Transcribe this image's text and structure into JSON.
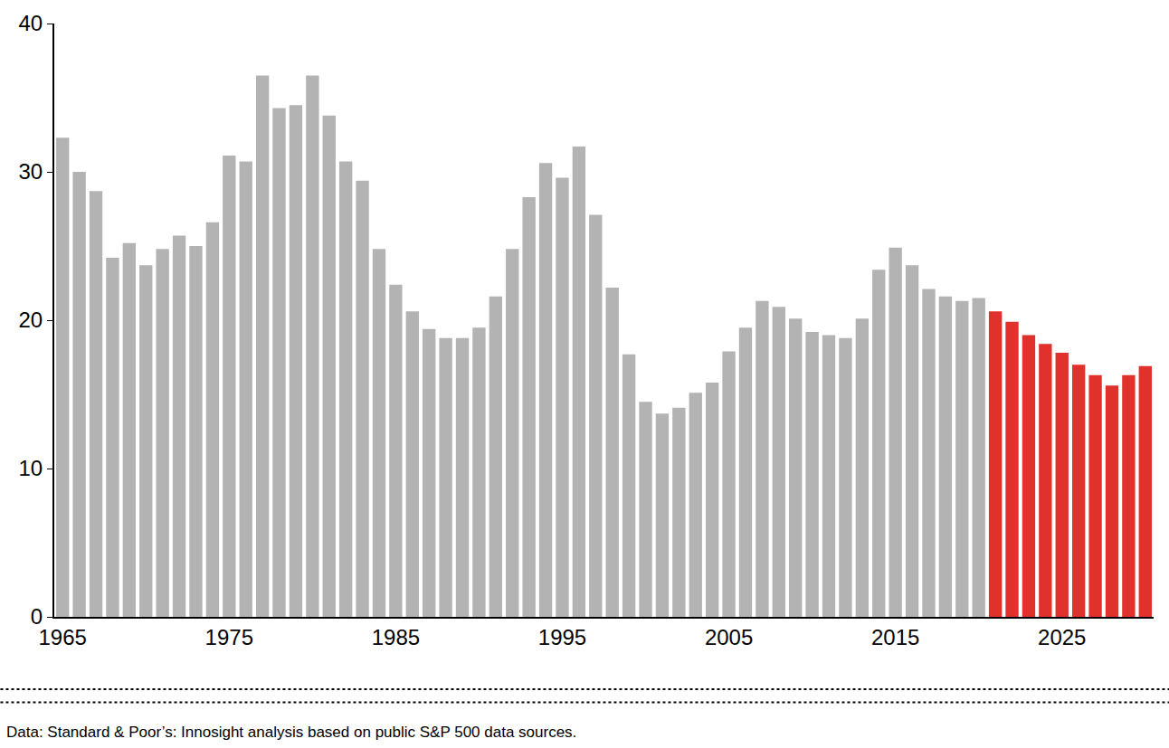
{
  "chart_data": {
    "type": "bar",
    "x": [
      1965,
      1966,
      1967,
      1968,
      1969,
      1970,
      1971,
      1972,
      1973,
      1974,
      1975,
      1976,
      1977,
      1978,
      1979,
      1980,
      1981,
      1982,
      1983,
      1984,
      1985,
      1986,
      1987,
      1988,
      1989,
      1990,
      1991,
      1992,
      1993,
      1994,
      1995,
      1996,
      1997,
      1998,
      1999,
      2000,
      2001,
      2002,
      2003,
      2004,
      2005,
      2006,
      2007,
      2008,
      2009,
      2010,
      2011,
      2012,
      2013,
      2014,
      2015,
      2016,
      2017,
      2018,
      2019,
      2020,
      2021,
      2022,
      2023,
      2024,
      2025,
      2026,
      2027,
      2028,
      2029,
      2030
    ],
    "values": [
      32.3,
      30.0,
      28.7,
      24.2,
      25.2,
      23.7,
      24.8,
      25.7,
      25.0,
      26.6,
      31.1,
      30.7,
      36.5,
      34.3,
      34.5,
      36.5,
      33.8,
      30.7,
      29.4,
      24.8,
      22.4,
      20.6,
      19.4,
      18.8,
      18.8,
      19.5,
      21.6,
      24.8,
      28.3,
      30.6,
      29.6,
      31.7,
      27.1,
      22.2,
      17.7,
      14.5,
      13.7,
      14.1,
      15.1,
      15.8,
      17.9,
      19.5,
      21.3,
      20.9,
      20.1,
      19.2,
      19.0,
      18.8,
      20.1,
      23.4,
      24.9,
      23.7,
      22.1,
      21.6,
      21.3,
      21.5,
      20.6,
      19.9,
      19.0,
      18.4,
      17.8,
      17.0,
      16.3,
      15.6,
      16.3,
      16.9
    ],
    "colors": [
      "#b3b3b3",
      "#b3b3b3",
      "#b3b3b3",
      "#b3b3b3",
      "#b3b3b3",
      "#b3b3b3",
      "#b3b3b3",
      "#b3b3b3",
      "#b3b3b3",
      "#b3b3b3",
      "#b3b3b3",
      "#b3b3b3",
      "#b3b3b3",
      "#b3b3b3",
      "#b3b3b3",
      "#b3b3b3",
      "#b3b3b3",
      "#b3b3b3",
      "#b3b3b3",
      "#b3b3b3",
      "#b3b3b3",
      "#b3b3b3",
      "#b3b3b3",
      "#b3b3b3",
      "#b3b3b3",
      "#b3b3b3",
      "#b3b3b3",
      "#b3b3b3",
      "#b3b3b3",
      "#b3b3b3",
      "#b3b3b3",
      "#b3b3b3",
      "#b3b3b3",
      "#b3b3b3",
      "#b3b3b3",
      "#b3b3b3",
      "#b3b3b3",
      "#b3b3b3",
      "#b3b3b3",
      "#b3b3b3",
      "#b3b3b3",
      "#b3b3b3",
      "#b3b3b3",
      "#b3b3b3",
      "#b3b3b3",
      "#b3b3b3",
      "#b3b3b3",
      "#b3b3b3",
      "#b3b3b3",
      "#b3b3b3",
      "#b3b3b3",
      "#b3b3b3",
      "#b3b3b3",
      "#b3b3b3",
      "#b3b3b3",
      "#b3b3b3",
      "#e0312c",
      "#e0312c",
      "#e0312c",
      "#e0312c",
      "#e0312c",
      "#e0312c",
      "#e0312c",
      "#e0312c",
      "#e0312c",
      "#e0312c"
    ],
    "xlim": [
      1964.5,
      2030.5
    ],
    "xticks": [
      1965,
      1975,
      1985,
      1995,
      2005,
      2015,
      2025
    ],
    "ylim": [
      0,
      40
    ],
    "yticks": [
      0,
      10,
      20,
      30,
      40
    ],
    "grid": false,
    "annotations": [
      "Data: Standard & Poor’s: Innosight analysis based on public S&P 500 data sources."
    ]
  }
}
